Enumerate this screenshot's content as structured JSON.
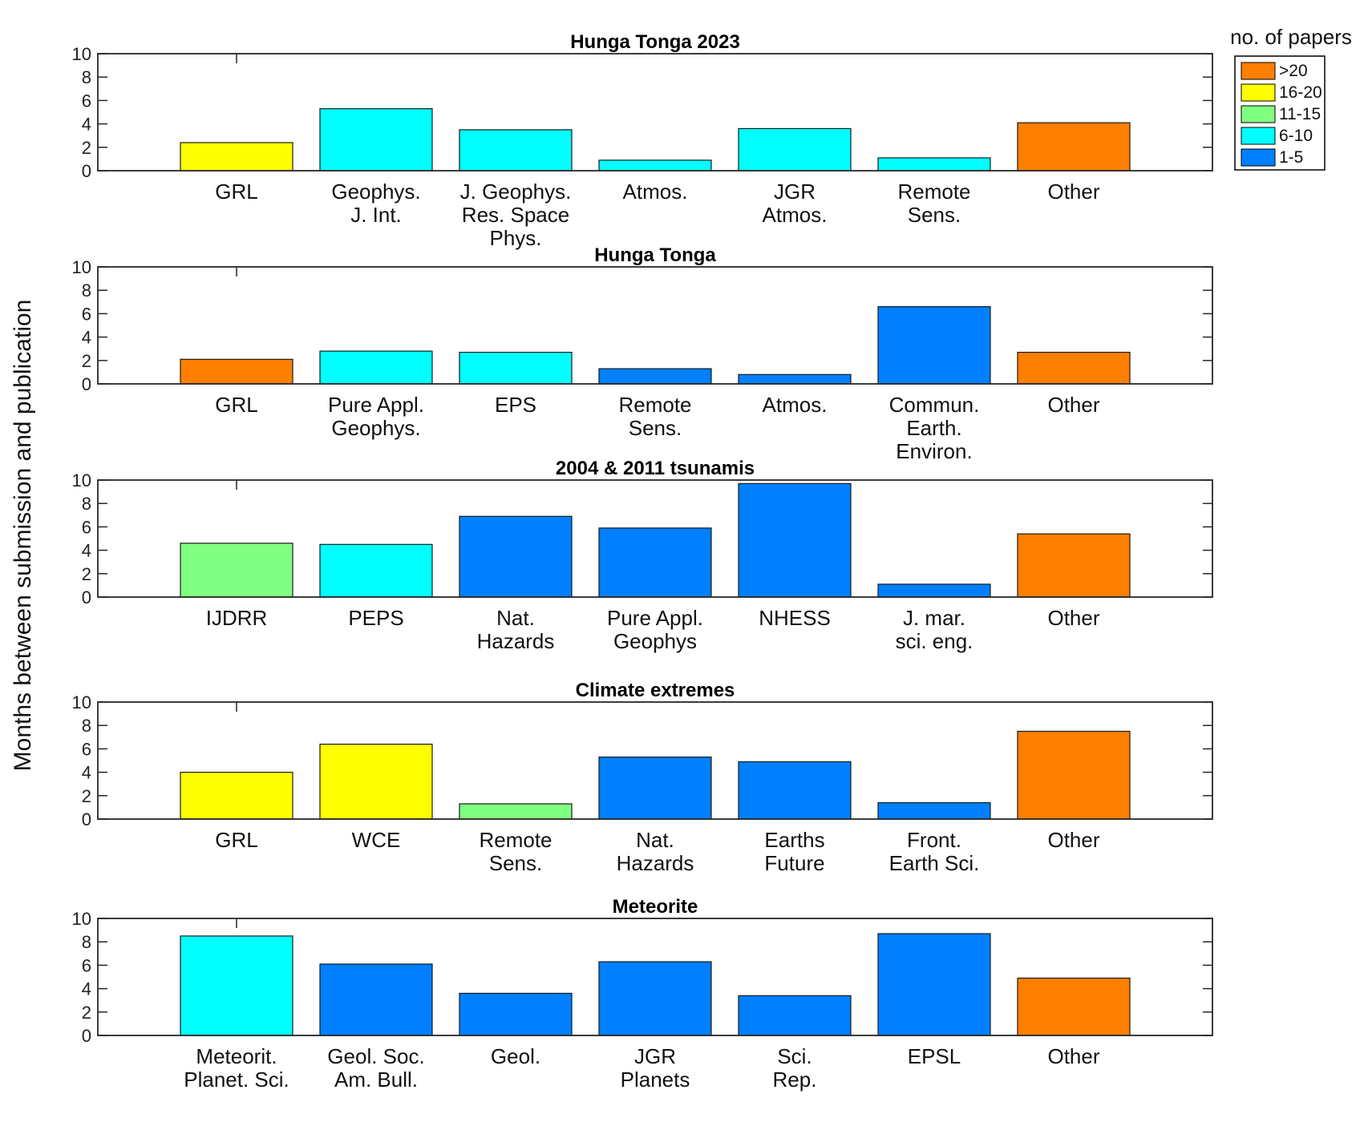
{
  "figure": {
    "ylabel": "Months between submission and publication",
    "legend": {
      "title": "no. of papers",
      "entries": [
        {
          "label": ">20",
          "color": "#ff8000"
        },
        {
          "label": "16-20",
          "color": "#ffff00"
        },
        {
          "label": "11-15",
          "color": "#80ff80"
        },
        {
          "label": "6-10",
          "color": "#00ffff"
        },
        {
          "label": "1-5",
          "color": "#0080ff"
        }
      ]
    }
  },
  "chart_data": [
    {
      "type": "bar",
      "title": "Hunga Tonga 2023",
      "ylim": [
        0,
        10
      ],
      "yticks": [
        "0",
        "2",
        "4",
        "6",
        "8",
        "10"
      ],
      "categories": [
        [
          "GRL"
        ],
        [
          "Geophys.",
          "J. Int."
        ],
        [
          "J. Geophys.",
          "Res.  Space",
          "Phys."
        ],
        [
          "Atmos."
        ],
        [
          "JGR",
          "Atmos."
        ],
        [
          "Remote",
          "Sens."
        ],
        [
          "Other"
        ]
      ],
      "values": [
        2.4,
        5.3,
        3.5,
        0.9,
        3.6,
        1.1,
        4.1
      ],
      "paper_bins": [
        "16-20",
        "6-10",
        "6-10",
        "6-10",
        "6-10",
        "6-10",
        ">20"
      ]
    },
    {
      "type": "bar",
      "title": "Hunga Tonga",
      "ylim": [
        0,
        10
      ],
      "yticks": [
        "0",
        "2",
        "4",
        "6",
        "8",
        "10"
      ],
      "categories": [
        [
          "GRL"
        ],
        [
          "Pure Appl.",
          "Geophys."
        ],
        [
          "EPS"
        ],
        [
          "Remote",
          "Sens."
        ],
        [
          "Atmos."
        ],
        [
          "Commun.",
          "Earth.",
          "Environ."
        ],
        [
          "Other"
        ]
      ],
      "values": [
        2.1,
        2.8,
        2.7,
        1.3,
        0.8,
        6.6,
        2.7
      ],
      "paper_bins": [
        ">20",
        "6-10",
        "6-10",
        "1-5",
        "1-5",
        "1-5",
        ">20"
      ]
    },
    {
      "type": "bar",
      "title": "2004 & 2011 tsunamis",
      "ylim": [
        0,
        10
      ],
      "yticks": [
        "0",
        "2",
        "4",
        "6",
        "8",
        "10"
      ],
      "categories": [
        [
          "IJDRR"
        ],
        [
          "PEPS"
        ],
        [
          "Nat.",
          "Hazards"
        ],
        [
          "Pure Appl.",
          "Geophys"
        ],
        [
          "NHESS"
        ],
        [
          "J. mar.",
          "sci. eng."
        ],
        [
          "Other"
        ]
      ],
      "values": [
        4.6,
        4.5,
        6.9,
        5.9,
        9.7,
        1.1,
        5.4
      ],
      "paper_bins": [
        "11-15",
        "6-10",
        "1-5",
        "1-5",
        "1-5",
        "1-5",
        ">20"
      ]
    },
    {
      "type": "bar",
      "title": "Climate extremes",
      "ylim": [
        0,
        10
      ],
      "yticks": [
        "0",
        "2",
        "4",
        "6",
        "8",
        "10"
      ],
      "categories": [
        [
          "GRL"
        ],
        [
          "WCE"
        ],
        [
          "Remote",
          "Sens."
        ],
        [
          "Nat.",
          "Hazards"
        ],
        [
          "Earths",
          "Future"
        ],
        [
          "Front.",
          "Earth Sci."
        ],
        [
          "Other"
        ]
      ],
      "values": [
        4.0,
        6.4,
        1.3,
        5.3,
        4.9,
        1.4,
        7.5
      ],
      "paper_bins": [
        "16-20",
        "16-20",
        "11-15",
        "1-5",
        "1-5",
        "1-5",
        ">20"
      ]
    },
    {
      "type": "bar",
      "title": "Meteorite",
      "ylim": [
        0,
        10
      ],
      "yticks": [
        "0",
        "2",
        "4",
        "6",
        "8",
        "10"
      ],
      "categories": [
        [
          "Meteorit.",
          "Planet. Sci."
        ],
        [
          "Geol. Soc.",
          "Am. Bull."
        ],
        [
          "Geol."
        ],
        [
          "JGR",
          "Planets"
        ],
        [
          "Sci.",
          "Rep."
        ],
        [
          "EPSL"
        ],
        [
          "Other"
        ]
      ],
      "values": [
        8.5,
        6.1,
        3.6,
        6.3,
        3.4,
        8.7,
        4.9
      ],
      "paper_bins": [
        "6-10",
        "1-5",
        "1-5",
        "1-5",
        "1-5",
        "1-5",
        ">20"
      ]
    }
  ]
}
